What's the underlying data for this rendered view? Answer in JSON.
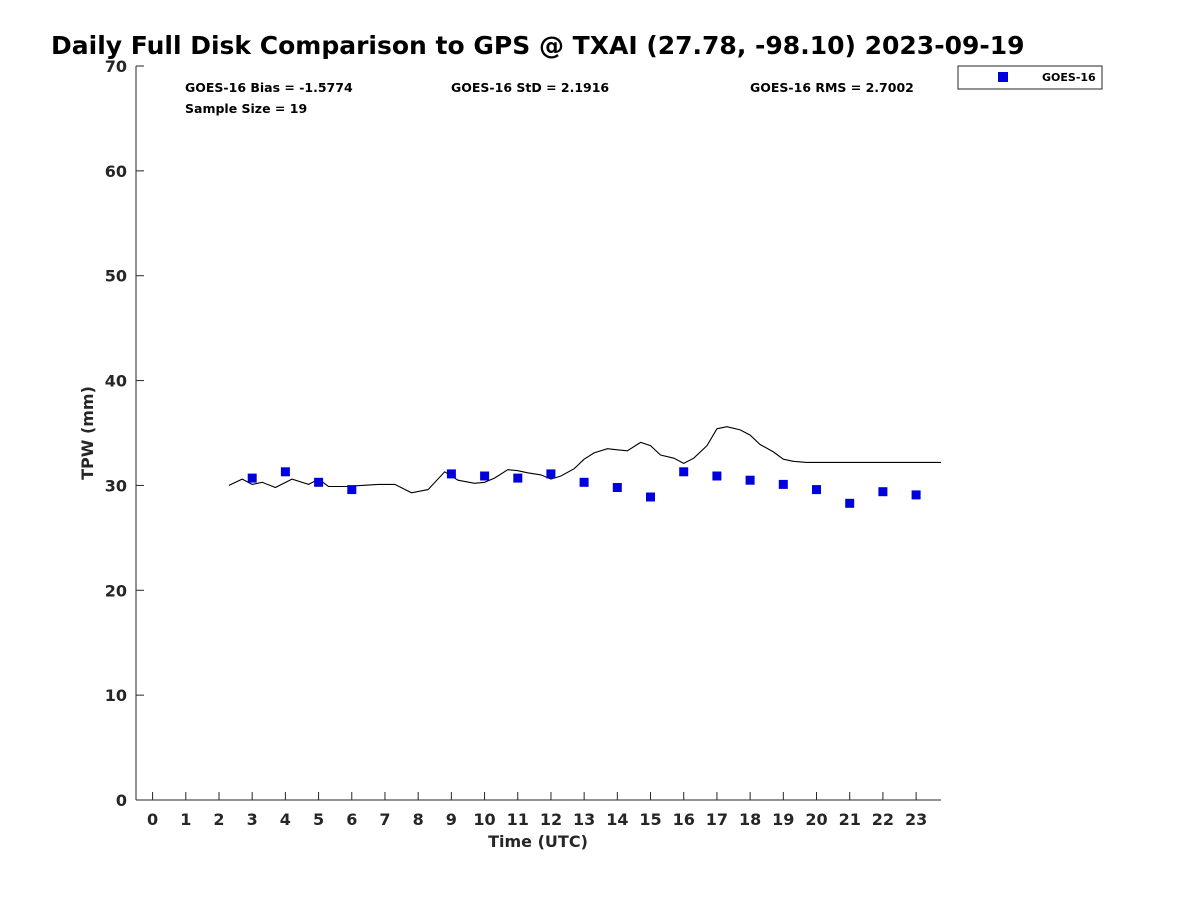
{
  "chart_data": {
    "type": "scatter",
    "title": "Daily Full Disk Comparison to GPS @ TXAI (27.78, -98.10) 2023-09-19",
    "xlabel": "Time (UTC)",
    "ylabel": "TPW (mm)",
    "xlim": [
      -0.5,
      23.75
    ],
    "ylim": [
      0,
      70
    ],
    "x_ticks": [
      "0",
      "1",
      "2",
      "3",
      "4",
      "5",
      "6",
      "7",
      "8",
      "9",
      "10",
      "11",
      "12",
      "13",
      "14",
      "15",
      "16",
      "17",
      "18",
      "19",
      "20",
      "21",
      "22",
      "23"
    ],
    "y_ticks": [
      "0",
      "10",
      "20",
      "30",
      "40",
      "50",
      "60",
      "70"
    ],
    "grid": false,
    "legend_position": "top-right",
    "stats": {
      "bias": "GOES-16 Bias = -1.5774",
      "std": "GOES-16 StD = 2.1916",
      "rms": "GOES-16 RMS = 2.7002",
      "sample_size": "Sample Size = 19"
    },
    "series": [
      {
        "name": "GOES-16",
        "kind": "scatter",
        "marker": "square",
        "color": "#0000dd",
        "x": [
          3,
          4,
          5,
          6,
          9,
          10,
          11,
          12,
          13,
          14,
          15,
          16,
          17,
          18,
          19,
          20,
          21,
          22,
          23
        ],
        "y": [
          30.7,
          31.3,
          30.3,
          29.6,
          31.1,
          30.9,
          30.7,
          31.1,
          30.3,
          29.8,
          28.9,
          31.3,
          30.9,
          30.5,
          30.1,
          29.6,
          28.3,
          29.4,
          29.1
        ]
      },
      {
        "kind": "line",
        "color": "#000000",
        "x": [
          2.3,
          2.7,
          3.0,
          3.3,
          3.7,
          4.2,
          4.7,
          5.0,
          5.3,
          5.8,
          6.3,
          6.8,
          7.3,
          7.8,
          8.3,
          8.8,
          9.2,
          9.7,
          10.0,
          10.3,
          10.7,
          11.0,
          11.3,
          11.7,
          12.0,
          12.3,
          12.7,
          13.0,
          13.3,
          13.7,
          14.0,
          14.3,
          14.7,
          15.0,
          15.3,
          15.7,
          16.0,
          16.3,
          16.7,
          17.0,
          17.3,
          17.7,
          18.0,
          18.3,
          18.7,
          19.0,
          19.3,
          19.7,
          20.0,
          20.3,
          20.7,
          21.0,
          21.3,
          21.7,
          22.0,
          22.3,
          22.7,
          23.0,
          23.3,
          23.75
        ],
        "y": [
          30.0,
          30.6,
          30.1,
          30.3,
          29.8,
          30.6,
          30.1,
          30.6,
          29.9,
          29.9,
          30.0,
          30.1,
          30.1,
          29.3,
          29.6,
          31.3,
          30.5,
          30.2,
          30.3,
          30.7,
          31.5,
          31.4,
          31.2,
          31.0,
          30.6,
          30.9,
          31.6,
          32.5,
          33.1,
          33.5,
          33.4,
          33.3,
          34.1,
          33.8,
          32.9,
          32.6,
          32.1,
          32.6,
          33.8,
          35.4,
          35.6,
          35.3,
          34.8,
          33.9,
          33.2,
          32.5,
          32.3,
          32.2,
          32.2,
          32.2,
          32.2,
          32.2,
          32.2,
          32.2,
          32.2,
          32.2,
          32.2,
          32.2,
          32.2,
          32.2
        ]
      }
    ]
  }
}
